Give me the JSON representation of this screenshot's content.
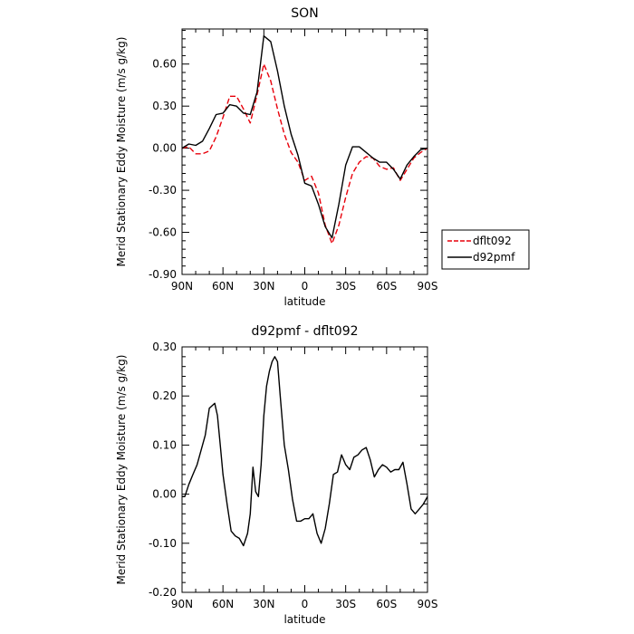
{
  "chart_data": [
    {
      "type": "line",
      "title": "SON",
      "xlabel": "latitude",
      "ylabel": "Merid Stationary Eddy Moisture (m/s g/kg)",
      "xlim": [
        90,
        -90
      ],
      "ylim": [
        -0.9,
        0.85
      ],
      "x_ticks": [
        90,
        60,
        30,
        0,
        -30,
        -60,
        -90
      ],
      "x_tick_labels": [
        "90N",
        "60N",
        "30N",
        "0",
        "30S",
        "60S",
        "90S"
      ],
      "y_ticks": [
        -0.9,
        -0.6,
        -0.3,
        0.0,
        0.3,
        0.6
      ],
      "y_tick_labels": [
        "-0.90",
        "-0.60",
        "-0.30",
        "0.00",
        "0.30",
        "0.60"
      ],
      "legend": {
        "position": "right-bottom",
        "entries": [
          "dflt092",
          "d92pmf"
        ]
      },
      "series": [
        {
          "name": "dflt092",
          "color": "#e8000b",
          "dash": "dashed",
          "x": [
            90,
            85,
            80,
            75,
            70,
            65,
            60,
            55,
            50,
            45,
            40,
            35,
            30,
            25,
            20,
            15,
            10,
            5,
            0,
            -5,
            -10,
            -15,
            -20,
            -25,
            -30,
            -35,
            -40,
            -45,
            -50,
            -55,
            -60,
            -65,
            -70,
            -75,
            -80,
            -85,
            -90
          ],
          "y": [
            0.0,
            0.01,
            -0.04,
            -0.04,
            -0.02,
            0.08,
            0.22,
            0.37,
            0.37,
            0.28,
            0.18,
            0.38,
            0.6,
            0.48,
            0.28,
            0.1,
            -0.03,
            -0.1,
            -0.23,
            -0.2,
            -0.32,
            -0.55,
            -0.68,
            -0.55,
            -0.35,
            -0.18,
            -0.1,
            -0.06,
            -0.07,
            -0.13,
            -0.15,
            -0.14,
            -0.23,
            -0.15,
            -0.07,
            -0.03,
            0.0
          ]
        },
        {
          "name": "d92pmf",
          "color": "#000000",
          "dash": "solid",
          "x": [
            90,
            85,
            80,
            75,
            70,
            65,
            60,
            55,
            50,
            45,
            40,
            35,
            30,
            25,
            20,
            15,
            10,
            5,
            0,
            -5,
            -10,
            -15,
            -20,
            -25,
            -30,
            -35,
            -40,
            -45,
            -50,
            -55,
            -60,
            -65,
            -70,
            -75,
            -80,
            -85,
            -90
          ],
          "y": [
            0.0,
            0.03,
            0.02,
            0.05,
            0.14,
            0.24,
            0.25,
            0.31,
            0.3,
            0.25,
            0.24,
            0.4,
            0.8,
            0.76,
            0.55,
            0.3,
            0.1,
            -0.05,
            -0.25,
            -0.27,
            -0.4,
            -0.56,
            -0.64,
            -0.4,
            -0.12,
            0.01,
            0.01,
            -0.03,
            -0.07,
            -0.1,
            -0.1,
            -0.15,
            -0.22,
            -0.12,
            -0.06,
            -0.01,
            0.0
          ]
        }
      ]
    },
    {
      "type": "line",
      "title": "d92pmf - dflt092",
      "xlabel": "latitude",
      "ylabel": "Merid Stationary Eddy Moisture (m/s g/kg)",
      "xlim": [
        90,
        -90
      ],
      "ylim": [
        -0.2,
        0.3
      ],
      "x_ticks": [
        90,
        60,
        30,
        0,
        -30,
        -60,
        -90
      ],
      "x_tick_labels": [
        "90N",
        "60N",
        "30N",
        "0",
        "30S",
        "60S",
        "90S"
      ],
      "y_ticks": [
        -0.2,
        -0.1,
        0.0,
        0.1,
        0.2,
        0.3
      ],
      "y_tick_labels": [
        "-0.20",
        "-0.10",
        "0.00",
        "0.10",
        "0.20",
        "0.30"
      ],
      "series": [
        {
          "color": "#000000",
          "dash": "solid",
          "x": [
            90,
            88,
            85,
            82,
            79,
            76,
            73,
            70,
            68,
            66,
            64,
            62,
            60,
            57,
            54,
            51,
            48,
            45,
            42,
            40,
            38,
            36,
            34,
            32,
            30,
            28,
            26,
            24,
            22,
            20,
            18,
            15,
            12,
            9,
            6,
            3,
            0,
            -3,
            -6,
            -9,
            -12,
            -15,
            -18,
            -21,
            -24,
            -27,
            -30,
            -33,
            -36,
            -39,
            -42,
            -45,
            -48,
            -51,
            -54,
            -57,
            -60,
            -63,
            -66,
            -69,
            -72,
            -75,
            -78,
            -81,
            -84,
            -87,
            -90
          ],
          "y": [
            -0.005,
            -0.005,
            0.02,
            0.04,
            0.06,
            0.09,
            0.12,
            0.175,
            0.18,
            0.185,
            0.16,
            0.1,
            0.04,
            -0.02,
            -0.075,
            -0.085,
            -0.09,
            -0.105,
            -0.08,
            -0.04,
            0.055,
            0.005,
            -0.005,
            0.06,
            0.16,
            0.22,
            0.25,
            0.27,
            0.28,
            0.27,
            0.2,
            0.1,
            0.05,
            -0.01,
            -0.055,
            -0.055,
            -0.05,
            -0.05,
            -0.04,
            -0.08,
            -0.1,
            -0.07,
            -0.02,
            0.04,
            0.045,
            0.08,
            0.06,
            0.05,
            0.075,
            0.08,
            0.09,
            0.095,
            0.07,
            0.035,
            0.05,
            0.06,
            0.055,
            0.045,
            0.05,
            0.05,
            0.065,
            0.02,
            -0.03,
            -0.04,
            -0.03,
            -0.02,
            -0.005
          ]
        }
      ]
    }
  ]
}
